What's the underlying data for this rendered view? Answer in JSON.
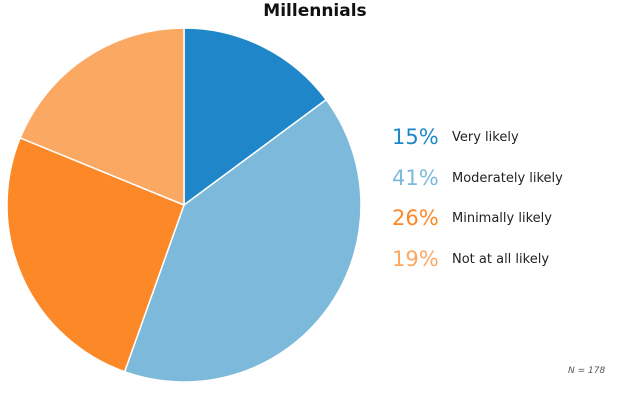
{
  "chart_data": {
    "type": "pie",
    "title": "Millennials",
    "slices": [
      {
        "value": 15,
        "label": "15%",
        "name": "Very likely",
        "color": "#1f87c9"
      },
      {
        "value": 41,
        "label": "41%",
        "name": "Moderately likely",
        "color": "#7cb9db"
      },
      {
        "value": 26,
        "label": "26%",
        "name": "Minimally likely",
        "color": "#fd8827"
      },
      {
        "value": 19,
        "label": "19%",
        "name": "Not at all likely",
        "color": "#fba863"
      }
    ],
    "legend_position": "right",
    "note": "N = 178"
  }
}
